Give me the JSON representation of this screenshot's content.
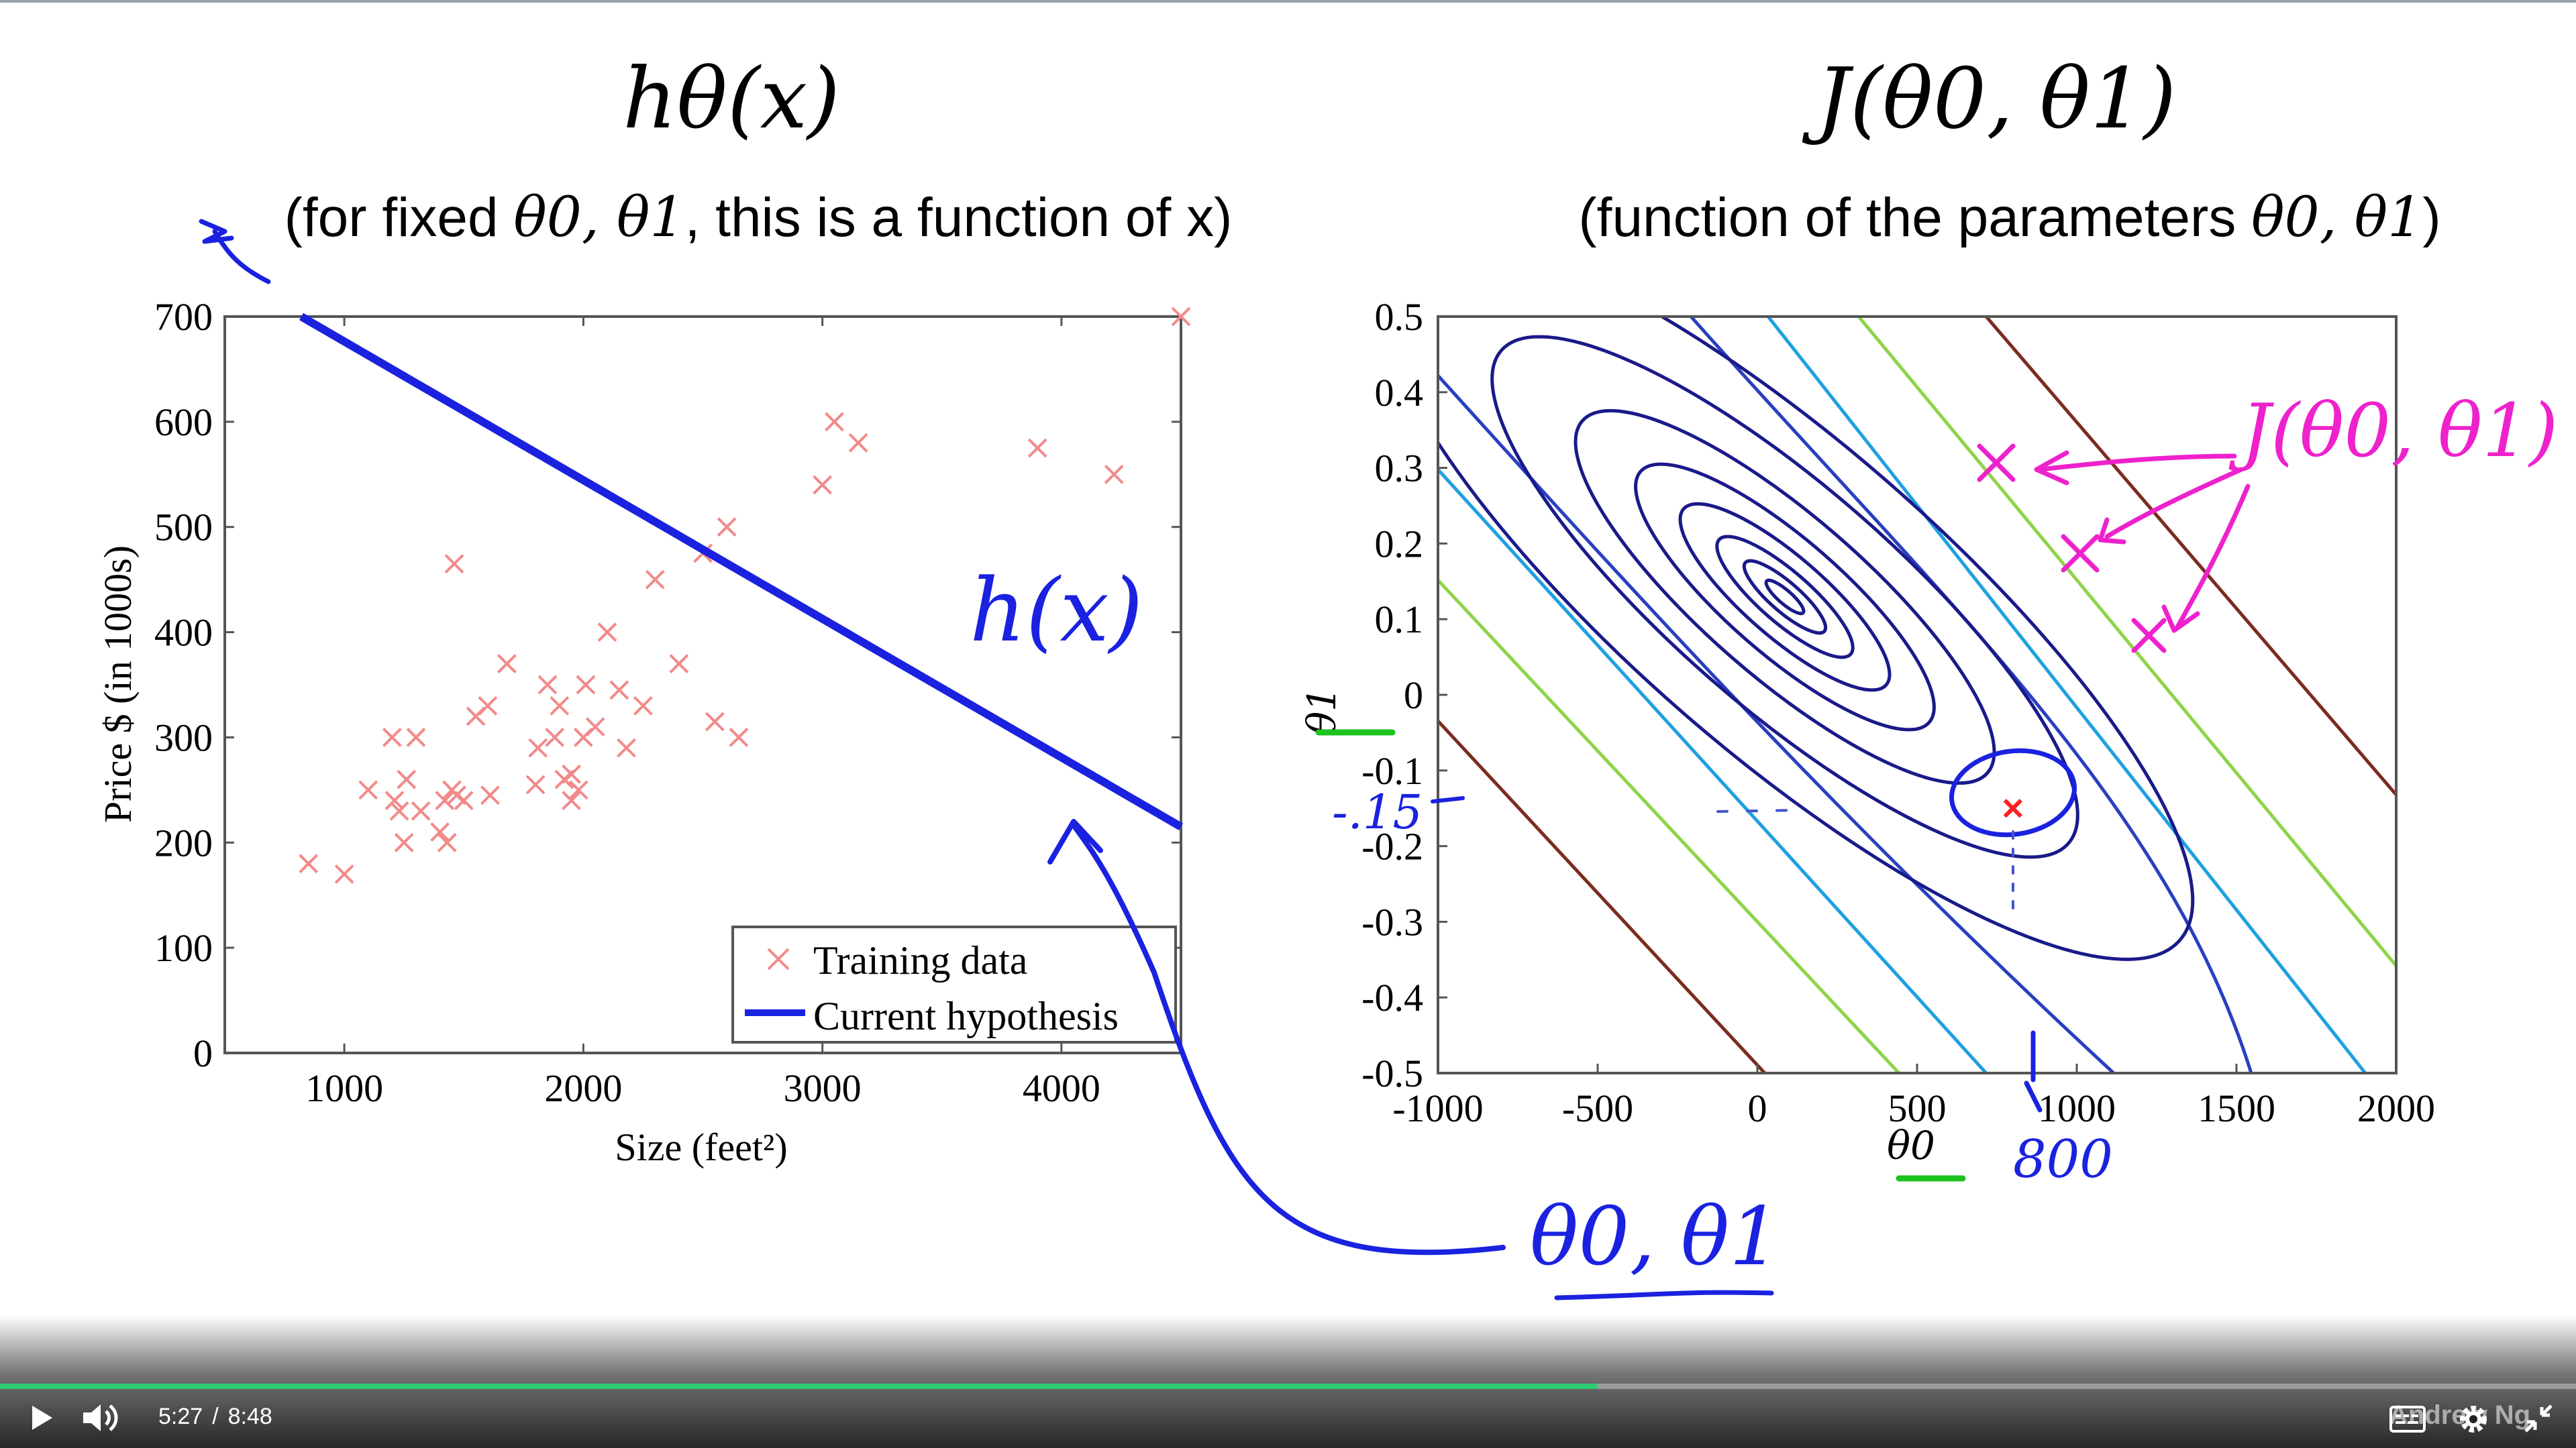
{
  "left_plot": {
    "title": "hθ(x)",
    "subtitle_prefix": "(for fixed ",
    "subtitle_params": "θ0, θ1",
    "subtitle_suffix": ", this is a function of x)",
    "ylabel": "Price $ (in 1000s)",
    "xlabel": "Size (feet²)",
    "yticks": [
      "0",
      "100",
      "200",
      "300",
      "400",
      "500",
      "600",
      "700"
    ],
    "xticks": [
      "1000",
      "2000",
      "3000",
      "4000"
    ],
    "legend": [
      "Training data",
      "Current hypothesis"
    ]
  },
  "right_plot": {
    "title": "J(θ0, θ1)",
    "subtitle_prefix": "(function of the parameters ",
    "subtitle_params": "θ0, θ1",
    "subtitle_suffix": ")",
    "ylabel": "θ1",
    "xlabel": "θ0",
    "yticks": [
      "-0.5",
      "-0.4",
      "-0.3",
      "-0.2",
      "-0.1",
      "0",
      "0.1",
      "0.2",
      "0.3",
      "0.4",
      "0.5"
    ],
    "xticks": [
      "-1000",
      "-500",
      "0",
      "500",
      "1000",
      "1500",
      "2000"
    ]
  },
  "annotations": {
    "hx": "h(x)",
    "jtheta": "J(θ0, θ1)",
    "theta_pair": "θ0, θ1",
    "val_800": "800",
    "val_neg15": "-.15"
  },
  "player": {
    "current_time": "5:27",
    "separator": "/",
    "duration": "8:48",
    "progress": 0.62,
    "watermark": "Andrew Ng"
  },
  "chart_data": [
    {
      "type": "scatter",
      "title": "hθ(x)",
      "xlabel": "Size (feet²)",
      "ylabel": "Price $ (in 1000s)",
      "xlim": [
        500,
        4500
      ],
      "ylim": [
        0,
        700
      ],
      "series": [
        {
          "name": "Training data",
          "x": [
            850,
            1000,
            1100,
            1200,
            1210,
            1230,
            1250,
            1260,
            1300,
            1320,
            1400,
            1420,
            1430,
            1450,
            1470,
            1500,
            1550,
            1600,
            1610,
            1680,
            1800,
            1810,
            1850,
            1880,
            1900,
            1920,
            1950,
            1980,
            2000,
            2010,
            2050,
            2100,
            2150,
            2180,
            2250,
            2300,
            2400,
            2500,
            2550,
            2600,
            2650,
            3000,
            3050,
            3150,
            3900,
            4220,
            4500,
            1460,
            1950
          ],
          "y": [
            180,
            170,
            250,
            300,
            240,
            230,
            200,
            260,
            300,
            230,
            210,
            240,
            200,
            250,
            245,
            240,
            320,
            330,
            245,
            370,
            255,
            290,
            350,
            300,
            330,
            260,
            240,
            250,
            300,
            350,
            310,
            400,
            345,
            290,
            330,
            450,
            370,
            475,
            315,
            500,
            300,
            540,
            600,
            580,
            575,
            550,
            700,
            465,
            265
          ]
        },
        {
          "name": "Current hypothesis",
          "line_x": [
            820,
            4500
          ],
          "line_y": [
            700,
            215
          ]
        }
      ]
    },
    {
      "type": "contour",
      "title": "J(θ0, θ1)",
      "xlabel": "θ0",
      "ylabel": "θ1",
      "xlim": [
        -1000,
        2000
      ],
      "ylim": [
        -0.5,
        0.5
      ],
      "minimum": [
        100,
        0.15
      ],
      "marked_point": [
        800,
        -0.15
      ]
    }
  ]
}
